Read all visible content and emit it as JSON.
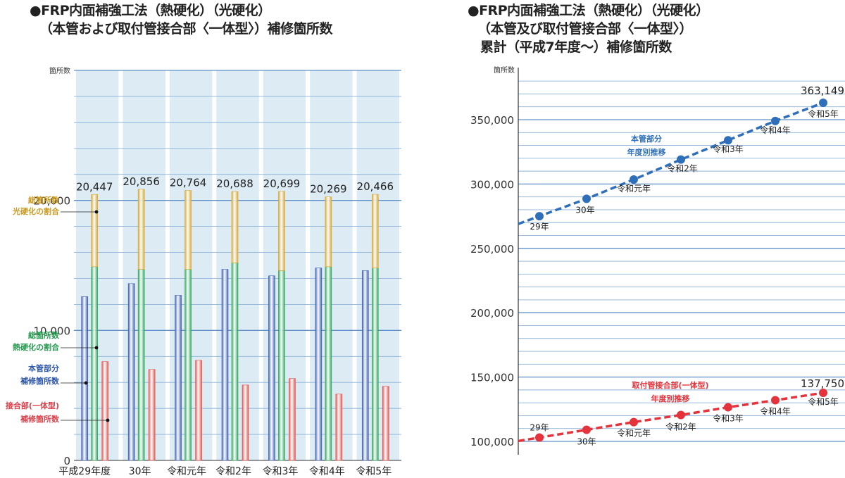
{
  "left_title": [
    "●FRP内面補強工法（熱硬化）（光硬化）",
    "（本管および取付管接合部〈一体型〉）補修箇所数"
  ],
  "right_title": [
    "●FRP内面補強工法（熱硬化）（光硬化）",
    "（本管及び取付管接合部〈一体型〉）",
    "累計（平成7年度〜）補修箇所数"
  ],
  "colors": {
    "hon": "#3f61b3",
    "net": "#2fa85a",
    "hika": "#d9a72e",
    "set": "#e5534b",
    "bg": "#dcebf4",
    "grid": "#8cb2d8",
    "blue_line": "#2f6fba",
    "red_line": "#e4333c"
  },
  "chart_data": [
    {
      "type": "bar",
      "ylabel": "箇所数",
      "ylim": [
        0,
        30000
      ],
      "yticks": [
        "0",
        "10,000",
        "20,000"
      ],
      "categories": [
        "平成29年度",
        "30年",
        "令和元年",
        "令和2年",
        "令和3年",
        "令和4年",
        "令和5年"
      ],
      "totals_labels": [
        "20,447",
        "20,856",
        "20,764",
        "20,688",
        "20,699",
        "20,269",
        "20,466"
      ],
      "series": [
        {
          "name": "本管部分 補修箇所数",
          "values": [
            12600,
            13600,
            12700,
            14700,
            14200,
            14800,
            14600
          ]
        },
        {
          "name": "総箇所数 熱硬化の割合",
          "values": [
            14900,
            14700,
            14700,
            15200,
            14600,
            14900,
            14800
          ]
        },
        {
          "name": "総箇所数 光硬化の割合",
          "values": [
            5547,
            6156,
            6064,
            5488,
            6099,
            5369,
            5666
          ]
        },
        {
          "name": "接合部(一体型) 補修箇所数",
          "values": [
            7600,
            7000,
            7700,
            5800,
            6300,
            5100,
            5700
          ]
        }
      ],
      "legend": [
        {
          "lines": [
            "総箇所数",
            "光硬化の割合"
          ],
          "color": "#c99a20"
        },
        {
          "lines": [
            "総箇所数",
            "熱硬化の割合"
          ],
          "color": "#249a4e"
        },
        {
          "lines": [
            "本管部分",
            "補修箇所数"
          ],
          "color": "#2d55a8"
        },
        {
          "lines": [
            "接合部(一体型)",
            "補修箇所数"
          ],
          "color": "#d9404a"
        }
      ]
    },
    {
      "type": "line",
      "ylabel": "箇所数",
      "ylim": [
        90000,
        380000
      ],
      "yticks": [
        "100,000",
        "150,000",
        "200,000",
        "250,000",
        "300,000",
        "350,000"
      ],
      "series": [
        {
          "name": "本管部分 年度別推移",
          "labels": [
            "29年",
            "30年",
            "令和元年",
            "令和2年",
            "令和3年",
            "令和4年",
            "令和5年"
          ],
          "values": [
            275000,
            288500,
            303500,
            319000,
            334000,
            349000,
            363149
          ],
          "end_label": "363,149"
        },
        {
          "name": "取付管接合部(一体型) 年度別推移",
          "labels": [
            "29年",
            "30年",
            "令和元年",
            "令和2年",
            "令和3年",
            "令和4年",
            "令和5年"
          ],
          "values": [
            103000,
            109000,
            115000,
            120500,
            126500,
            132000,
            137750
          ],
          "end_label": "137,750"
        }
      ],
      "series_titles": [
        [
          "本管部分",
          "年度別推移"
        ],
        [
          "取付管接合部(一体型)",
          "年度別推移"
        ]
      ]
    }
  ]
}
